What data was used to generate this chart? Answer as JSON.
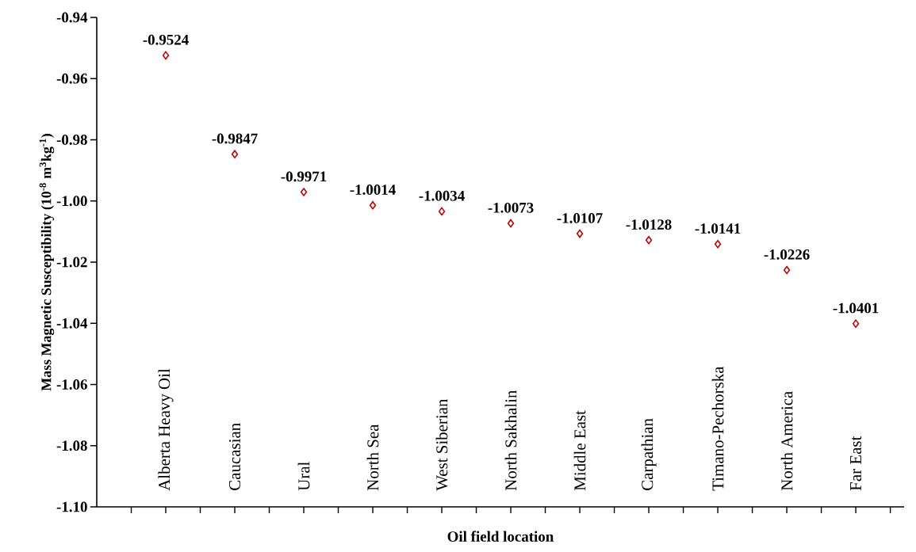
{
  "chart_data": {
    "type": "scatter",
    "xlabel": "Oil field location",
    "ylabel": "Mass Magnetic Susceptibility (10$^{-8}$ m$^{3}$kg$^{-1}$)",
    "categories": [
      "Alberta Heavy Oil",
      "Caucasian",
      "Ural",
      "North Sea",
      "West Siberian",
      "North Sakhalin",
      "Middle East",
      "Carpathian",
      "Timano-Pechorska",
      "North America",
      "Far East"
    ],
    "values": [
      -0.9524,
      -0.9847,
      -0.9971,
      -1.0014,
      -1.0034,
      -1.0073,
      -1.0107,
      -1.0128,
      -1.0141,
      -1.0226,
      -1.0401
    ],
    "color": "#c00000",
    "marker": "diamond",
    "data_labels": true,
    "ylim": [
      -1.1,
      -0.94
    ],
    "yticks": [
      {
        "value": -1.1,
        "label": "-1.10"
      },
      -1.08,
      -1.06,
      -1.04,
      -1.02,
      {
        "value": -1.0,
        "label": "-1.00"
      },
      -0.98,
      -0.96,
      -0.94
    ]
  }
}
